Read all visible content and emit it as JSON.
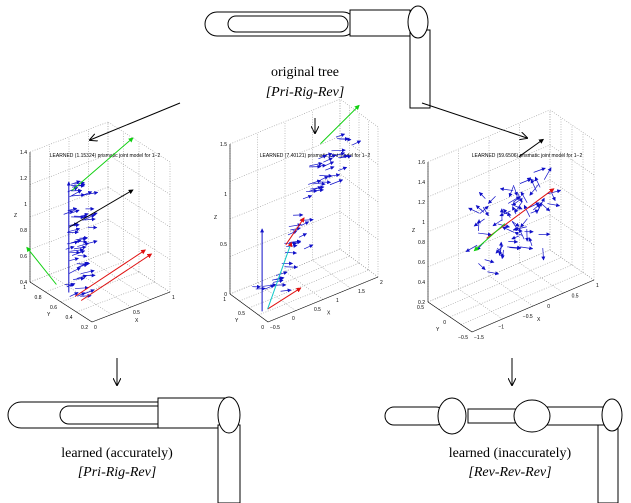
{
  "top": {
    "caption": "original tree",
    "label": "[Pri-Rig-Rev]"
  },
  "plots": [
    {
      "title": "LEARNED (1.15324) prismatic joint model for 1−2",
      "xlabel": "X",
      "ylabel": "Y",
      "zlabel": "Z",
      "xticks": [
        "0",
        "0.5",
        "1"
      ],
      "yticks": [
        "0.2",
        "0.4",
        "0.6",
        "0.8",
        "1"
      ],
      "zticks": [
        "0.4",
        "0.6",
        "0.8",
        "1",
        "1.2",
        "1.4"
      ]
    },
    {
      "title": "LEARNED (7.40121) prismatic joint model for 1−2",
      "xlabel": "X",
      "ylabel": "Y",
      "zlabel": "Z",
      "xticks": [
        "−0.5",
        "0",
        "0.5",
        "1",
        "1.5",
        "2"
      ],
      "yticks": [
        "0",
        "0.5",
        "1"
      ],
      "zticks": [
        "0",
        "0.5",
        "1",
        "1.5"
      ]
    },
    {
      "title": "LEARNED (59.6506) prismatic joint model for 1−2",
      "xlabel": "X",
      "ylabel": "Y",
      "zlabel": "Z",
      "xticks": [
        "−1.5",
        "−1",
        "−0.5",
        "0",
        "0.5",
        "1"
      ],
      "yticks": [
        "−0.5",
        "0",
        "0.5"
      ],
      "zticks": [
        "0.2",
        "0.4",
        "0.6",
        "0.8",
        "1",
        "1.2",
        "1.4",
        "1.6"
      ]
    }
  ],
  "bottom_left": {
    "caption": "learned (accurately)",
    "label": "[Pri-Rig-Rev]"
  },
  "bottom_right": {
    "caption": "learned (inaccurately)",
    "label": "[Rev-Rev-Rev]"
  }
}
